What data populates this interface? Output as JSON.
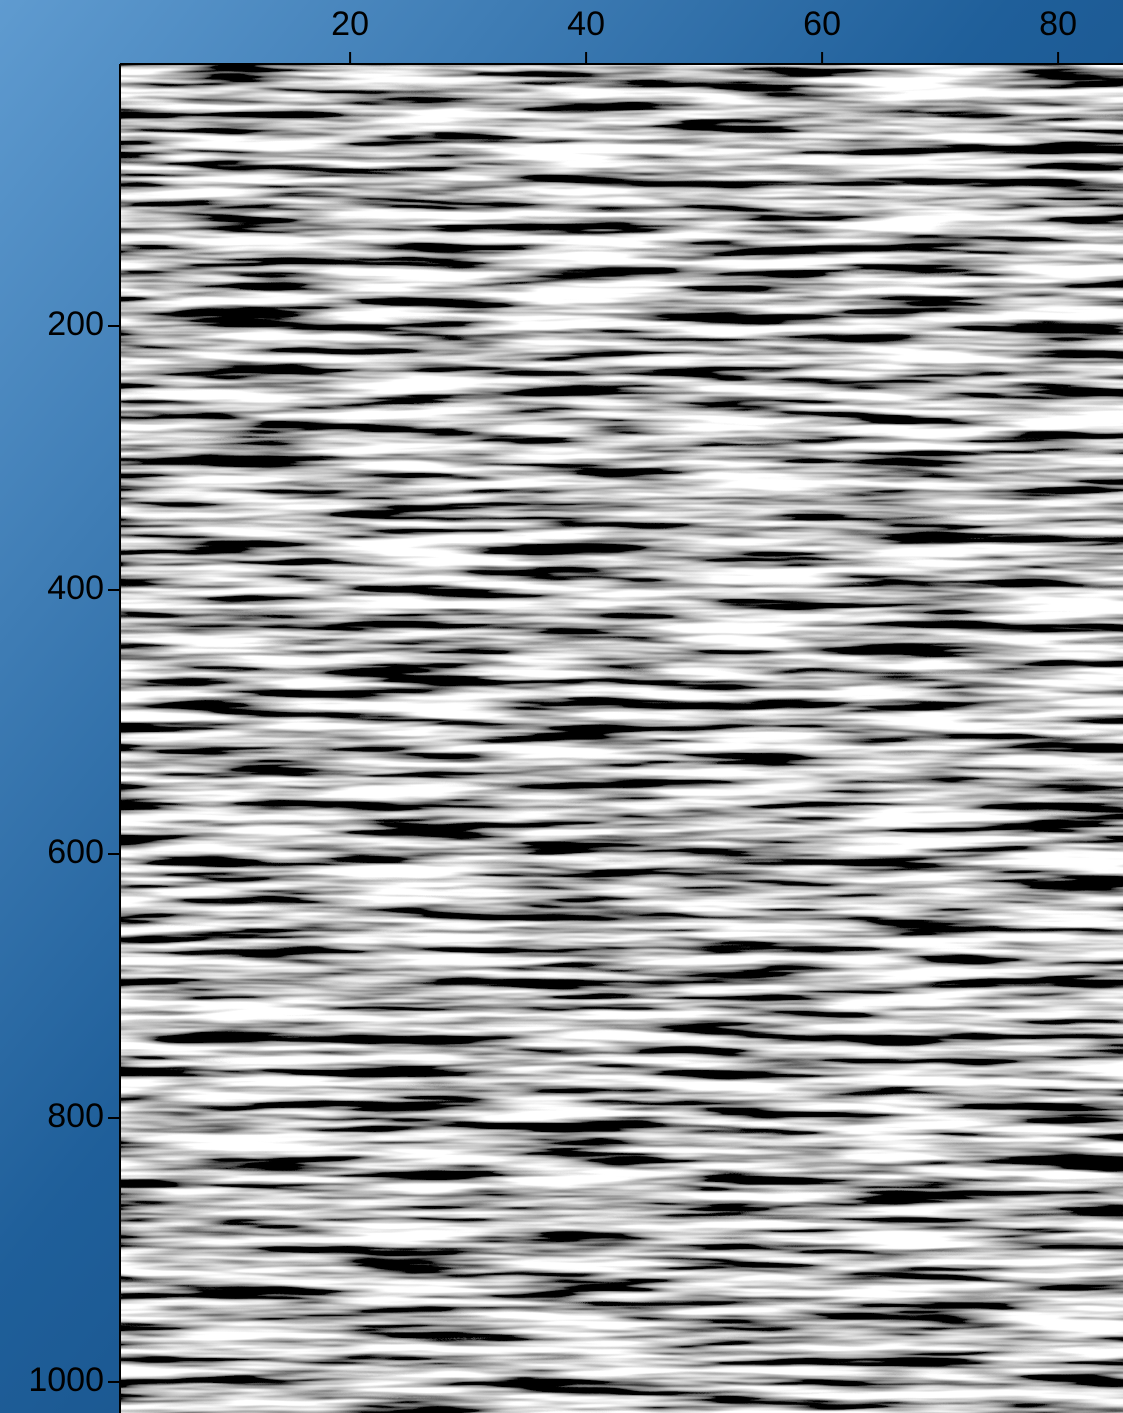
{
  "chart_data": {
    "type": "image",
    "xlim": [
      0.5,
      85.5
    ],
    "xticks": [
      20,
      40,
      60,
      80
    ],
    "xaxis_position": "top",
    "ylim": [
      1.5,
      1023.5
    ],
    "yticks": [
      200,
      400,
      600,
      800,
      1000
    ],
    "y_reversed": true
  }
}
